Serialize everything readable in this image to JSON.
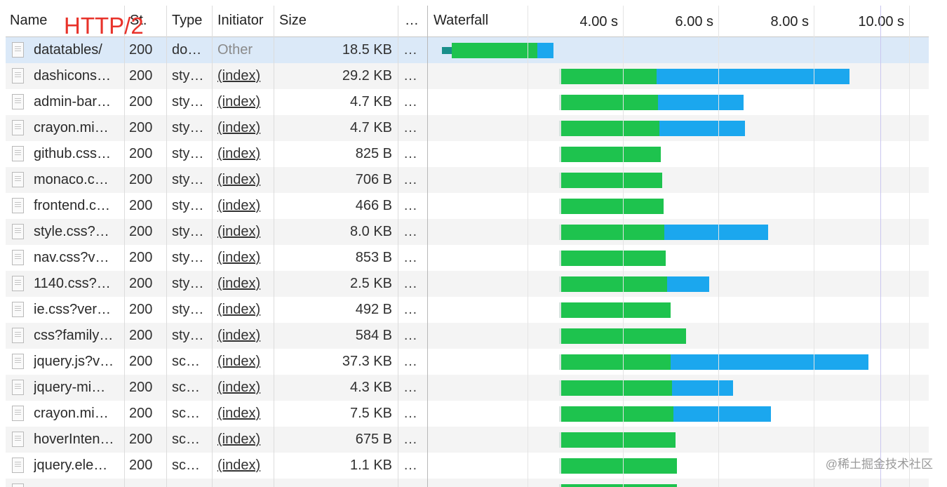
{
  "overlay_label": "HTTP/2",
  "watermark": "@稀土掘金技术社区",
  "columns": {
    "name": "Name",
    "status": "St.",
    "type": "Type",
    "initiator": "Initiator",
    "size": "Size",
    "more": "…",
    "waterfall": "Waterfall"
  },
  "waterfall_ticks": [
    "4.00 s",
    "6.00 s",
    "8.00 s",
    "10.00 s"
  ],
  "colors": {
    "waiting": "#1ec34e",
    "download": "#1ba7ee",
    "selected_row": "#dbe9f8",
    "overlay": "#e8322a"
  },
  "requests": [
    {
      "name": "datatables/",
      "status": "200",
      "type": "do…",
      "initiator": "Other",
      "size": "18.5 KB",
      "more": "…",
      "start": 0.2,
      "wait": 2.0,
      "download": 0.35,
      "selected": true,
      "initiator_link": false
    },
    {
      "name": "dashicons…",
      "status": "200",
      "type": "sty…",
      "initiator": "(index)",
      "size": "29.2 KB",
      "more": "…",
      "start": 2.7,
      "wait": 2.0,
      "download": 4.05
    },
    {
      "name": "admin-bar…",
      "status": "200",
      "type": "sty…",
      "initiator": "(index)",
      "size": "4.7 KB",
      "more": "…",
      "start": 2.7,
      "wait": 2.03,
      "download": 1.8
    },
    {
      "name": "crayon.mi…",
      "status": "200",
      "type": "sty…",
      "initiator": "(index)",
      "size": "4.7 KB",
      "more": "…",
      "start": 2.7,
      "wait": 2.06,
      "download": 1.8
    },
    {
      "name": "github.css…",
      "status": "200",
      "type": "sty…",
      "initiator": "(index)",
      "size": "825 B",
      "more": "…",
      "start": 2.7,
      "wait": 2.1,
      "download": 0
    },
    {
      "name": "monaco.c…",
      "status": "200",
      "type": "sty…",
      "initiator": "(index)",
      "size": "706 B",
      "more": "…",
      "start": 2.7,
      "wait": 2.13,
      "download": 0
    },
    {
      "name": "frontend.c…",
      "status": "200",
      "type": "sty…",
      "initiator": "(index)",
      "size": "466 B",
      "more": "…",
      "start": 2.7,
      "wait": 2.16,
      "download": 0
    },
    {
      "name": "style.css?…",
      "status": "200",
      "type": "sty…",
      "initiator": "(index)",
      "size": "8.0 KB",
      "more": "…",
      "start": 2.7,
      "wait": 2.17,
      "download": 2.17
    },
    {
      "name": "nav.css?v…",
      "status": "200",
      "type": "sty…",
      "initiator": "(index)",
      "size": "853 B",
      "more": "…",
      "start": 2.7,
      "wait": 2.2,
      "download": 0
    },
    {
      "name": "1140.css?…",
      "status": "200",
      "type": "sty…",
      "initiator": "(index)",
      "size": "2.5 KB",
      "more": "…",
      "start": 2.7,
      "wait": 2.23,
      "download": 0.88
    },
    {
      "name": "ie.css?ver…",
      "status": "200",
      "type": "sty…",
      "initiator": "(index)",
      "size": "492 B",
      "more": "…",
      "start": 2.7,
      "wait": 2.3,
      "download": 0
    },
    {
      "name": "css?family…",
      "status": "200",
      "type": "sty…",
      "initiator": "(index)",
      "size": "584 B",
      "more": "…",
      "start": 2.7,
      "wait": 2.63,
      "download": 0
    },
    {
      "name": "jquery.js?v…",
      "status": "200",
      "type": "sc…",
      "initiator": "(index)",
      "size": "37.3 KB",
      "more": "…",
      "start": 2.7,
      "wait": 2.3,
      "download": 4.15
    },
    {
      "name": "jquery-mi…",
      "status": "200",
      "type": "sc…",
      "initiator": "(index)",
      "size": "4.3 KB",
      "more": "…",
      "start": 2.7,
      "wait": 2.33,
      "download": 1.28
    },
    {
      "name": "crayon.mi…",
      "status": "200",
      "type": "sc…",
      "initiator": "(index)",
      "size": "7.5 KB",
      "more": "…",
      "start": 2.7,
      "wait": 2.36,
      "download": 2.05
    },
    {
      "name": "hoverInten…",
      "status": "200",
      "type": "sc…",
      "initiator": "(index)",
      "size": "675 B",
      "more": "…",
      "start": 2.7,
      "wait": 2.4,
      "download": 0
    },
    {
      "name": "jquery.ele…",
      "status": "200",
      "type": "sc…",
      "initiator": "(index)",
      "size": "1.1 KB",
      "more": "…",
      "start": 2.7,
      "wait": 2.43,
      "download": 0
    },
    {
      "name": "",
      "status": "",
      "type": "",
      "initiator": "",
      "size": "",
      "more": "",
      "start": 2.7,
      "wait": 2.43,
      "download": 0
    }
  ]
}
